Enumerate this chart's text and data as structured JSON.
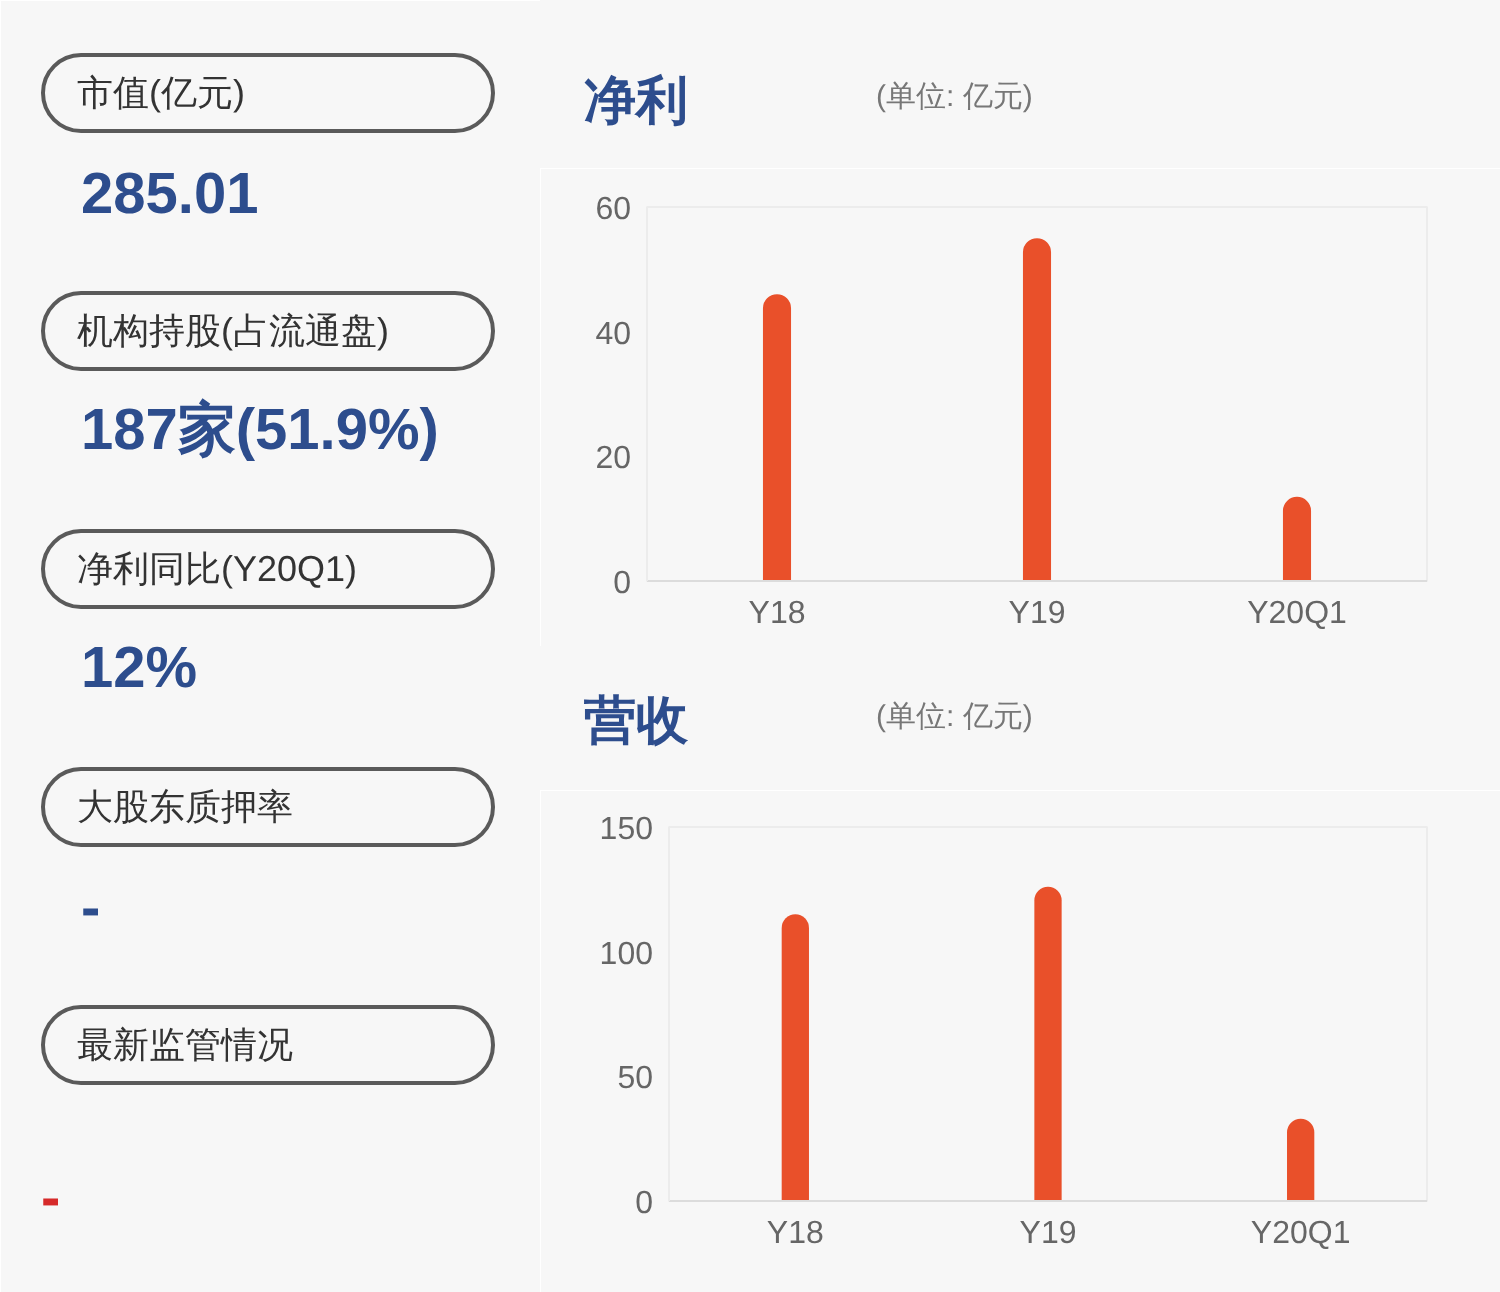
{
  "chart_data": [
    {
      "type": "other",
      "annotations": [
        "市值(亿元)",
        "285.01",
        "机构持股(占流通盘)",
        "187家(51.9%)",
        "净利同比(Y20Q1)",
        "12%",
        "大股东质押率",
        "-",
        "最新监管情况",
        "-"
      ]
    },
    {
      "type": "bar",
      "title": "净利",
      "subtitle": "(单位: 亿元)",
      "categories": [
        "Y18",
        "Y19",
        "Y20Q1"
      ],
      "values": [
        46,
        55,
        13.5
      ],
      "color": "#e9502a",
      "ylim": [
        0,
        60
      ],
      "yticks": [
        0,
        20,
        40,
        60
      ],
      "grid": false
    },
    {
      "type": "bar",
      "title": "营收",
      "subtitle": "(单位: 亿元)",
      "categories": [
        "Y18",
        "Y19",
        "Y20Q1"
      ],
      "values": [
        115,
        126,
        33
      ],
      "color": "#e9502a",
      "ylim": [
        0,
        150
      ],
      "yticks": [
        0,
        50,
        100,
        150
      ],
      "grid": false
    }
  ]
}
